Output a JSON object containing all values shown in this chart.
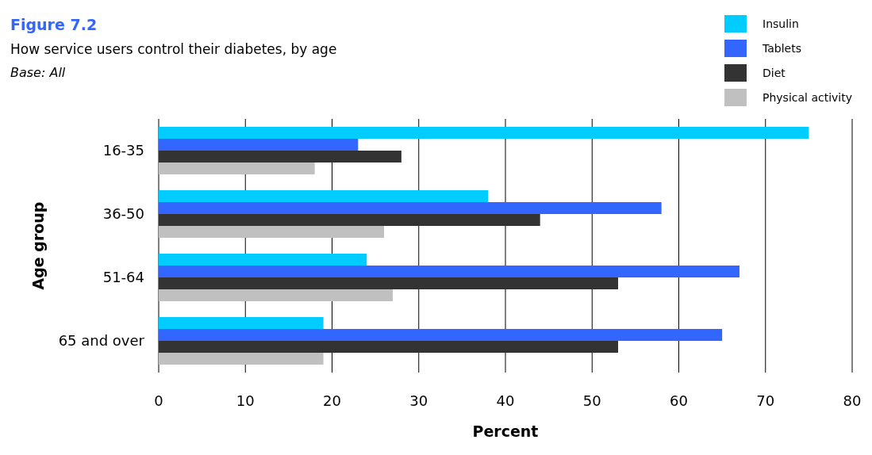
{
  "chart_data": {
    "type": "bar",
    "orientation": "horizontal",
    "title": "Figure 7.2",
    "subtitle": "How service users control their diabetes, by age",
    "annotations": [
      "Base: All"
    ],
    "xlabel": "Percent",
    "ylabel": "Age group",
    "categories": [
      "16-35",
      "36-50",
      "51-64",
      "65 and over"
    ],
    "series": [
      {
        "name": "Insulin",
        "color": "#00ccff",
        "values": [
          75,
          38,
          24,
          19
        ]
      },
      {
        "name": "Tablets",
        "color": "#3366ff",
        "values": [
          23,
          58,
          67,
          65
        ]
      },
      {
        "name": "Diet",
        "color": "#333333",
        "values": [
          28,
          44,
          53,
          53
        ]
      },
      {
        "name": "Physical activity",
        "color": "#c0c0c0",
        "values": [
          18,
          26,
          27,
          19
        ]
      }
    ],
    "xlim": [
      0,
      80
    ],
    "xticks": [
      0,
      10,
      20,
      30,
      40,
      50,
      60,
      70,
      80
    ],
    "grid": "x",
    "legend": "top right"
  }
}
